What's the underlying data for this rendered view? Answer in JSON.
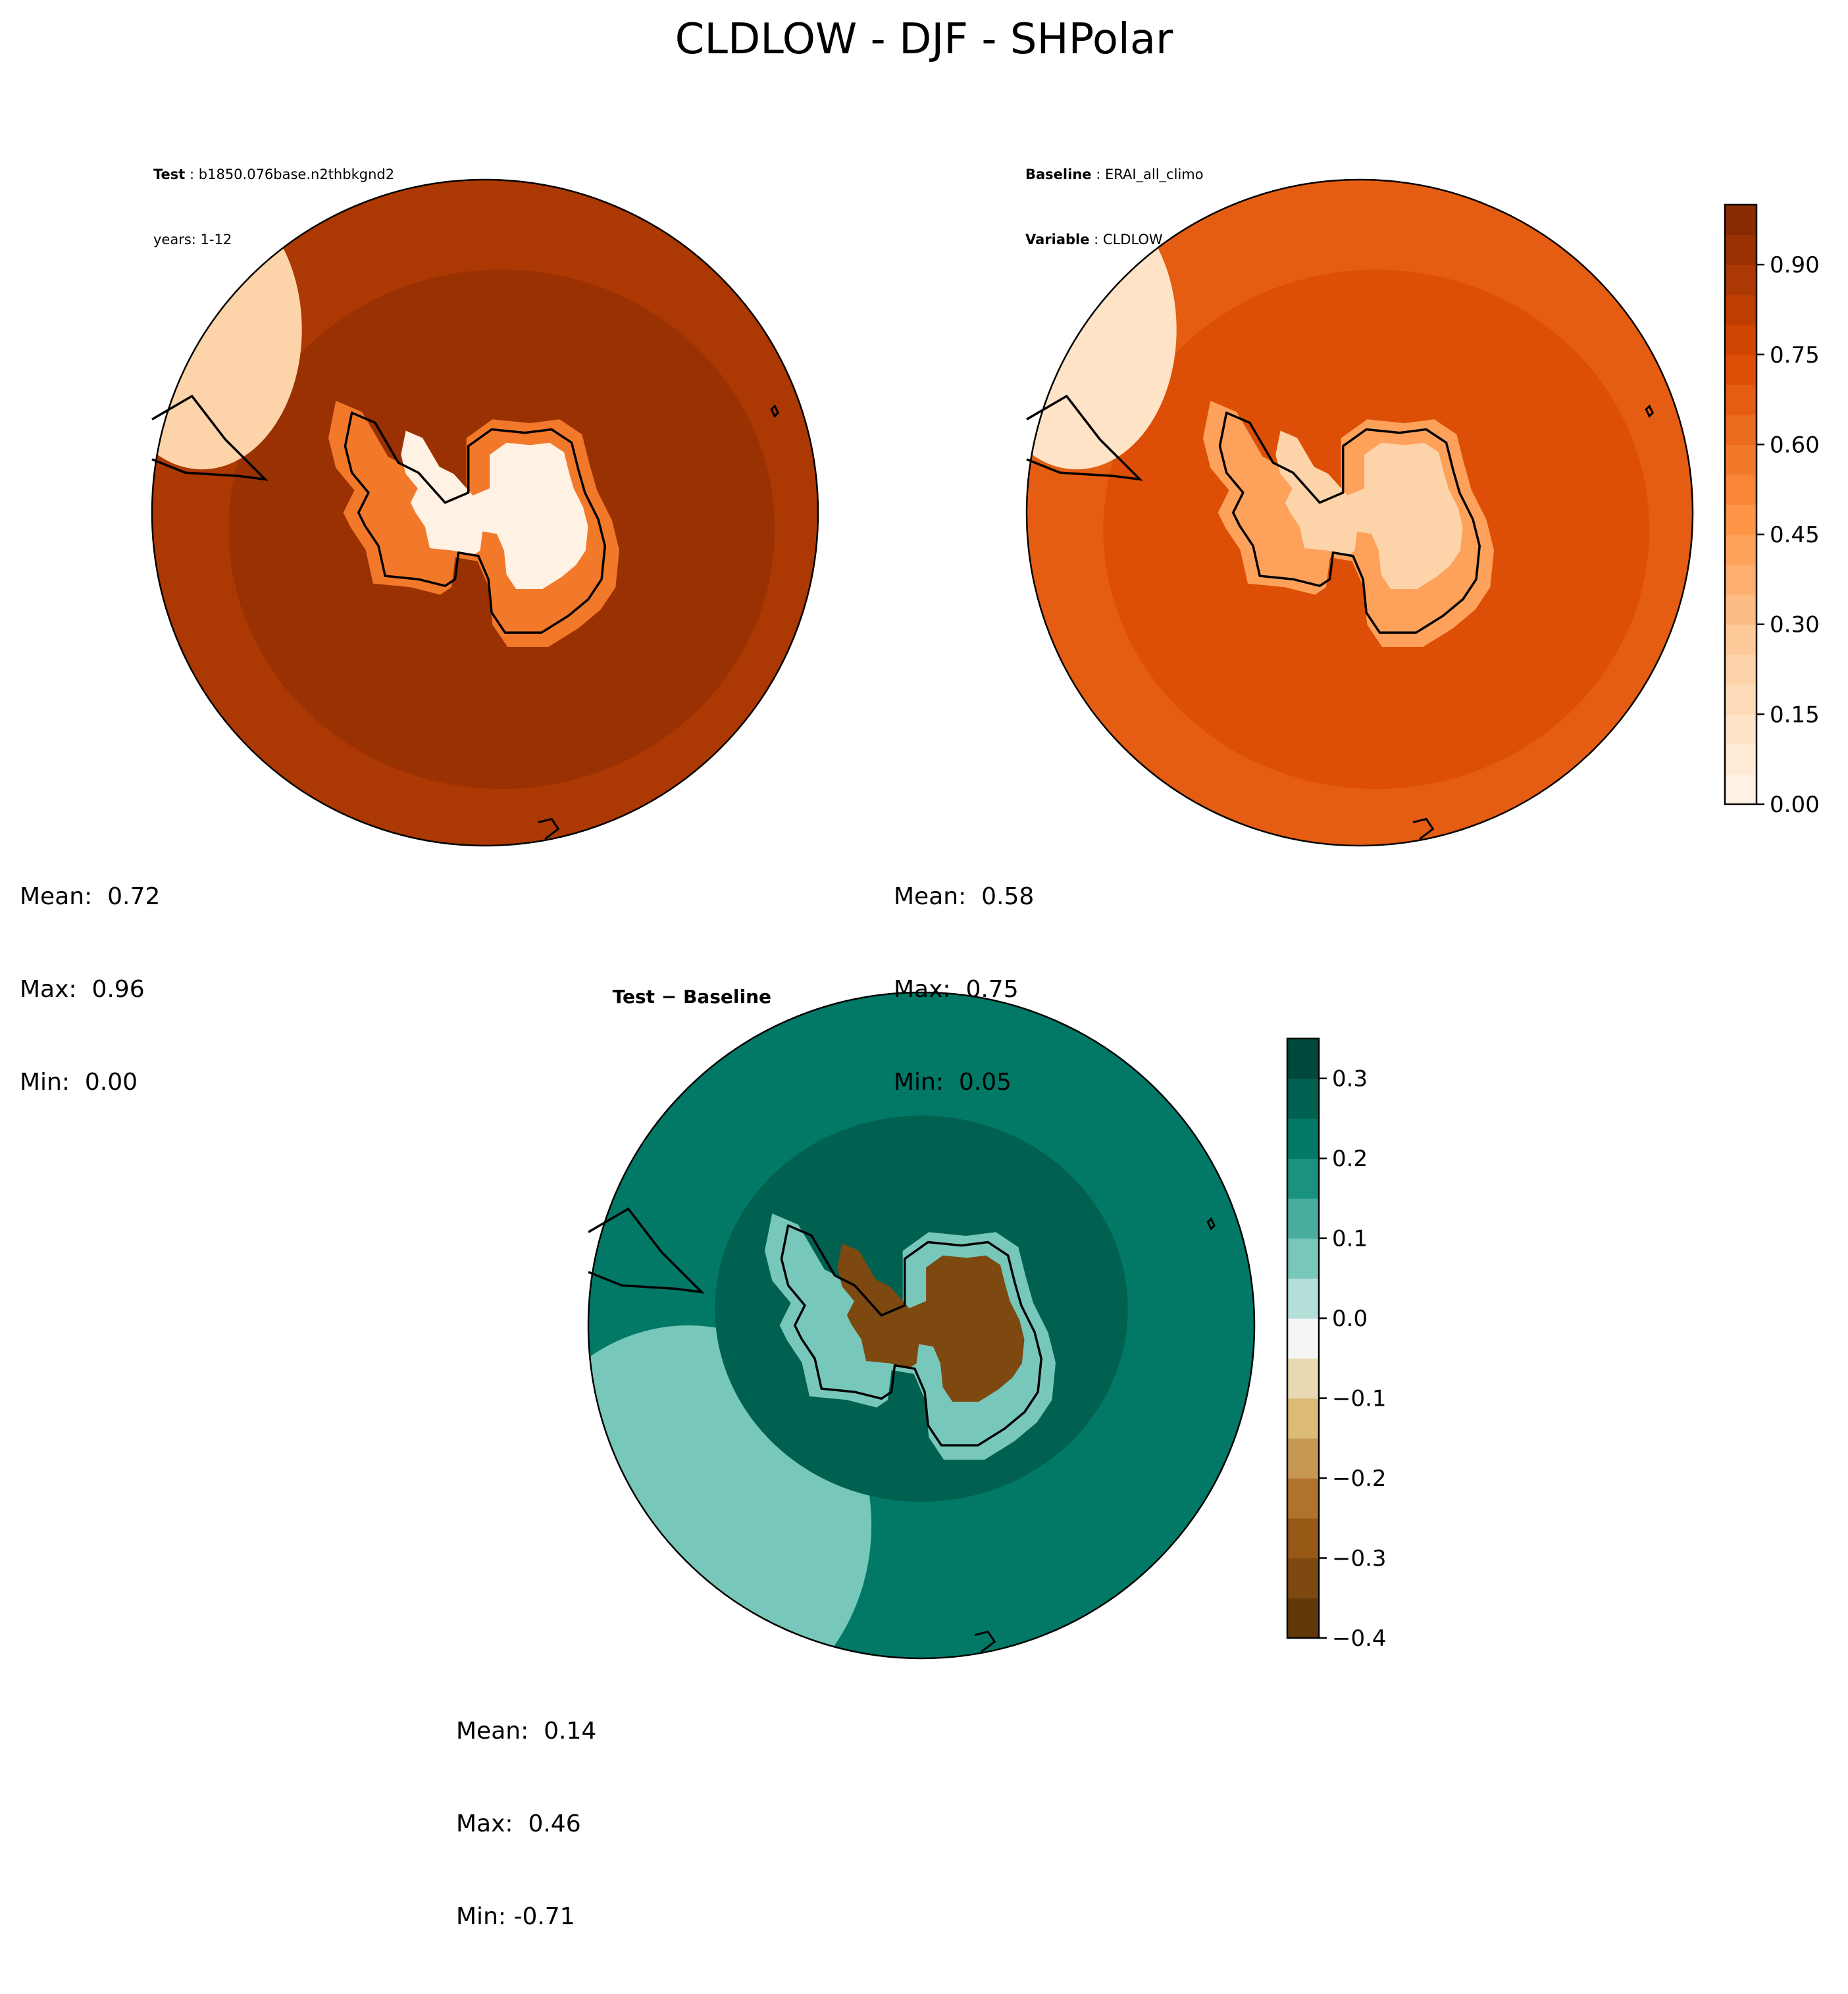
{
  "figure": {
    "title": "CLDLOW - DJF - SHPolar"
  },
  "panels": [
    {
      "id": "test",
      "header": [
        {
          "label": "Test",
          "sep": " : ",
          "value": "b1850.076base.n2thbkgnd2"
        },
        {
          "label": "",
          "sep": "",
          "value": "years: 1-12"
        }
      ],
      "stats": {
        "mean": "Mean:  0.72",
        "max": "Max:  0.96",
        "min": "Min:  0.00"
      },
      "field": {
        "ocean_base": 0.86,
        "ocean_warm_band": 0.92,
        "antarctic_interior": 0.03,
        "antarctic_coast": 0.55,
        "sa_tip_region": 0.2
      }
    },
    {
      "id": "baseline",
      "header": [
        {
          "label": "Baseline",
          "sep": " : ",
          "value": "ERAI_all_climo"
        },
        {
          "label": "Variable",
          "sep": " : ",
          "value": "CLDLOW"
        }
      ],
      "stats": {
        "mean": "Mean:  0.58",
        "max": "Max:  0.75",
        "min": "Min:  0.05"
      },
      "field": {
        "ocean_base": 0.68,
        "ocean_warm_band": 0.72,
        "antarctic_interior": 0.2,
        "antarctic_coast": 0.4,
        "sa_tip_region": 0.15
      }
    },
    {
      "id": "diff",
      "header": [
        {
          "label": "Test − Baseline",
          "sep": "",
          "value": ""
        }
      ],
      "stats": {
        "mean": "Mean:  0.14",
        "max": "Max:  0.46",
        "min": "Min: -0.71"
      },
      "field": {
        "ocean_base": 0.22,
        "inner_ring": 0.3,
        "outer_edge": 0.05,
        "antarctic_interior": -0.35,
        "antarctic_coast": 0.05
      }
    }
  ],
  "colorbars": [
    {
      "id": "abs",
      "colormap": "Oranges",
      "range": [
        0.0,
        1.0
      ],
      "levels": 20,
      "ticks": [
        "0.00",
        "0.15",
        "0.30",
        "0.45",
        "0.60",
        "0.75",
        "0.90"
      ],
      "tick_values": [
        0.0,
        0.15,
        0.3,
        0.45,
        0.6,
        0.75,
        0.9
      ]
    },
    {
      "id": "diff",
      "colormap": "BrBG",
      "range": [
        -0.4,
        0.35
      ],
      "levels": 15,
      "ticks": [
        "−0.4",
        "−0.3",
        "−0.2",
        "−0.1",
        "0.0",
        "0.1",
        "0.2",
        "0.3"
      ],
      "tick_values": [
        -0.4,
        -0.3,
        -0.2,
        -0.1,
        0.0,
        0.1,
        0.2,
        0.3
      ]
    }
  ],
  "chart_data": {
    "type": "heatmap",
    "title": "CLDLOW - DJF - SHPolar",
    "projection": "south polar stereographic",
    "panels": [
      {
        "name": "Test",
        "case": "b1850.076base.n2thbkgnd2",
        "years": "1-12",
        "mean": 0.72,
        "max": 0.96,
        "min": 0.0
      },
      {
        "name": "Baseline",
        "case": "ERAI_all_climo",
        "variable": "CLDLOW",
        "mean": 0.58,
        "max": 0.75,
        "min": 0.05
      },
      {
        "name": "Test − Baseline",
        "mean": 0.14,
        "max": 0.46,
        "min": -0.71
      }
    ],
    "colorbar_abs": {
      "range": [
        0.0,
        1.0
      ],
      "ticks": [
        0.0,
        0.15,
        0.3,
        0.45,
        0.6,
        0.75,
        0.9
      ]
    },
    "colorbar_diff": {
      "range": [
        -0.4,
        0.35
      ],
      "ticks": [
        -0.4,
        -0.3,
        -0.2,
        -0.1,
        0.0,
        0.1,
        0.2,
        0.3
      ]
    }
  }
}
